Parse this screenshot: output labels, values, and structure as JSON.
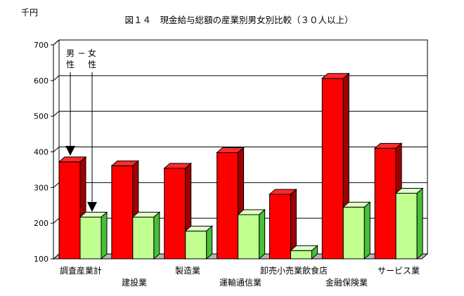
{
  "chart_data": {
    "type": "bar",
    "title": "図１４　現金給与総額の産業別男女別比較（３０人以上）",
    "unit_label": "千円",
    "ylim": [
      100,
      700
    ],
    "yticks": [
      100,
      200,
      300,
      400,
      500,
      600,
      700
    ],
    "grid": true,
    "style": "3d-clustered-bar",
    "categories": [
      "調査産業計",
      "建設業",
      "製造業",
      "運輸通信業",
      "卸売小売業飲食店",
      "金融保険業",
      "サービス業"
    ],
    "series": [
      {
        "name": "男性",
        "color": "#ff0000",
        "values": [
          372,
          361,
          354,
          398,
          281,
          606,
          410
        ]
      },
      {
        "name": "女性",
        "color": "#c0ff90",
        "values": [
          217,
          217,
          178,
          224,
          123,
          245,
          284
        ]
      }
    ],
    "legend": {
      "labels": [
        "男\n性",
        "女\n性"
      ],
      "placement": "top-left, arrows pointing to first category bars"
    }
  }
}
